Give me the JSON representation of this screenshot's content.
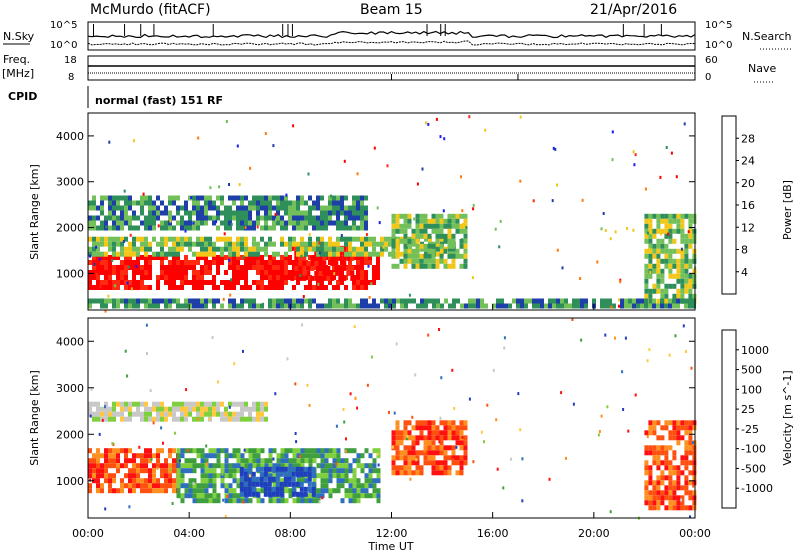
{
  "header": {
    "station": "McMurdo (fitACF)",
    "beam": "Beam 15",
    "date": "21/Apr/2016"
  },
  "top_panels": {
    "nsky_label": "N.Sky",
    "nsearch_label": "N.Search",
    "nsky_ticks": [
      "10^5",
      "10^0"
    ],
    "nsearch_ticks": [
      "10^5",
      "10^0"
    ],
    "freq_label": "Freq.",
    "freq_unit": "[MHz]",
    "freq_ticks": [
      "18",
      "8"
    ],
    "nave_label": "Nave",
    "nave_ticks": [
      "60",
      "0"
    ],
    "cpid_label": "CPID",
    "cpid_text": "normal (fast) 151 RF"
  },
  "x_axis": {
    "label": "Time UT",
    "ticks": [
      "00:00",
      "04:00",
      "08:00",
      "12:00",
      "16:00",
      "20:00",
      "00:00"
    ]
  },
  "chart_data": [
    {
      "type": "heatmap",
      "name": "power",
      "ylabel": "Slant Range [km]",
      "yticks": [
        "4000",
        "3000",
        "2000",
        "1000"
      ],
      "ylim": [
        200,
        4500
      ],
      "colorbar_label": "Power [dB]",
      "colorbar_ticks": [
        "28",
        "24",
        "20",
        "16",
        "12",
        "8",
        "4"
      ],
      "colorscale": [
        "#1c1cff",
        "#1f3fa8",
        "#2f8f5a",
        "#73c05a",
        "#f2c71a",
        "#ff7a10",
        "#ff2a10",
        "#ff0000"
      ],
      "xlim": [
        0,
        24
      ],
      "regions": [
        {
          "t": [
            0,
            11.5
          ],
          "range": [
            700,
            1400
          ],
          "value": 28
        },
        {
          "t": [
            8,
            10.5
          ],
          "range": [
            900,
            1600
          ],
          "value": 28
        },
        {
          "t": [
            0,
            14.5
          ],
          "range": [
            1400,
            1800
          ],
          "value": 12
        },
        {
          "t": [
            0,
            11
          ],
          "range": [
            2000,
            2700
          ],
          "value": 10
        },
        {
          "t": [
            12,
            15
          ],
          "range": [
            1200,
            2300
          ],
          "value": 14
        },
        {
          "t": [
            22,
            24
          ],
          "range": [
            400,
            2300
          ],
          "value": 14
        },
        {
          "t": [
            0,
            24
          ],
          "range": [
            250,
            450
          ],
          "value": 8
        }
      ]
    },
    {
      "type": "heatmap",
      "name": "velocity",
      "ylabel": "Slant Range [km]",
      "yticks": [
        "4000",
        "3000",
        "2000",
        "1000"
      ],
      "ylim": [
        200,
        4500
      ],
      "colorbar_label": "Velocity [m s^-1]",
      "colorbar_ticks": [
        "1000",
        "500",
        "100",
        "25",
        "-25",
        "-100",
        "-500",
        "-1000"
      ],
      "colorscale": [
        "#1f3fbf",
        "#2f6fbf",
        "#3f9f3f",
        "#7fcf3f",
        "#c8c8c8",
        "#ffc840",
        "#ff9020",
        "#ff5010",
        "#ff1010"
      ],
      "xlim": [
        0,
        24
      ],
      "regions": [
        {
          "t": [
            0,
            3.5
          ],
          "range": [
            800,
            1700
          ],
          "value": -500
        },
        {
          "t": [
            3.5,
            11.5
          ],
          "range": [
            600,
            1700
          ],
          "value": 100
        },
        {
          "t": [
            6,
            9
          ],
          "range": [
            700,
            1300
          ],
          "value": 1000
        },
        {
          "t": [
            0,
            7
          ],
          "range": [
            2300,
            2700
          ],
          "value": 0
        },
        {
          "t": [
            12,
            15
          ],
          "range": [
            1200,
            2300
          ],
          "value": -500
        },
        {
          "t": [
            22,
            24
          ],
          "range": [
            400,
            2300
          ],
          "value": -500
        }
      ]
    }
  ]
}
